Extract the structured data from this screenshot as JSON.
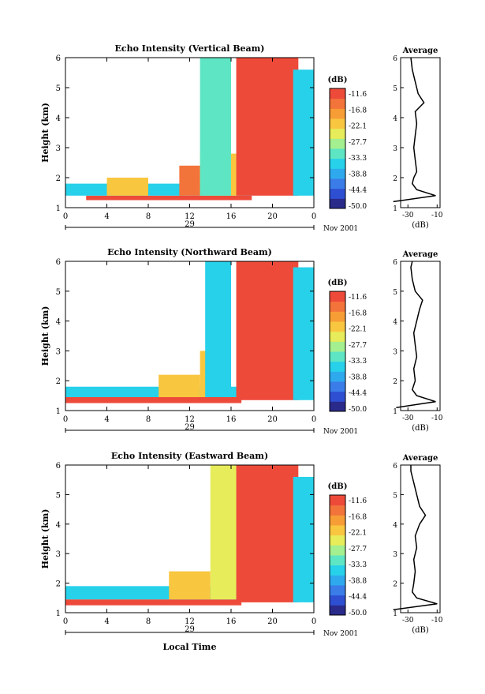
{
  "colors": {
    "palette": [
      "#2a2a8a",
      "#2f4fd2",
      "#3a7ce8",
      "#2fa9ee",
      "#27d1ea",
      "#5ee6c4",
      "#a4ef8f",
      "#e7ec5a",
      "#f9c640",
      "#f79d36",
      "#f3743a",
      "#ee4a3a"
    ]
  },
  "colorbar": {
    "unit": "(dB)",
    "ticks": [
      "-11.6",
      "-16.8",
      "-22.1",
      "-27.7",
      "-33.3",
      "-38.8",
      "-44.4",
      "-50.0"
    ]
  },
  "x_axis": {
    "ticks": [
      "0",
      "4",
      "8",
      "12",
      "16",
      "20",
      "0"
    ],
    "day": "29",
    "month_year": "Nov 2001",
    "xlabel": "Local Time"
  },
  "profile": {
    "title": "Average",
    "xticks": [
      "-30",
      "-10"
    ],
    "xlabel": "(dB)"
  },
  "chart_data": [
    {
      "type": "heatmap",
      "title": "Echo Intensity (Vertical Beam)",
      "ylabel": "Height (km)",
      "xlim": [
        0,
        24
      ],
      "ylim": [
        1,
        6
      ],
      "yticks": [
        "1",
        "2",
        "3",
        "4",
        "5",
        "6"
      ],
      "colorbar_range_db": [
        -50.0,
        -11.6
      ],
      "layers": [
        {
          "x": [
            2,
            18
          ],
          "y": [
            1.25,
            1.4
          ],
          "db": -12
        },
        {
          "x": [
            0,
            18
          ],
          "y": [
            1.4,
            1.8
          ],
          "db": -35
        },
        {
          "x": [
            4,
            8
          ],
          "y": [
            1.4,
            2.0
          ],
          "db": -22
        },
        {
          "x": [
            11,
            13
          ],
          "y": [
            1.4,
            2.4
          ],
          "db": -18
        },
        {
          "x": [
            13,
            17
          ],
          "y": [
            1.4,
            2.8
          ],
          "db": -24
        },
        {
          "x": [
            13,
            16
          ],
          "y": [
            1.4,
            6.0
          ],
          "db": -33
        },
        {
          "x": [
            16.5,
            22.5
          ],
          "y": [
            1.4,
            6.0
          ],
          "db": -13
        },
        {
          "x": [
            22,
            24
          ],
          "y": [
            1.4,
            5.6
          ],
          "db": -35
        }
      ],
      "profile": {
        "height_km": [
          1.2,
          1.4,
          1.6,
          1.8,
          2.0,
          2.2,
          2.6,
          3.0,
          3.4,
          3.8,
          4.2,
          4.5,
          4.8,
          5.2,
          5.6,
          6.0
        ],
        "db": [
          -40,
          -11,
          -24,
          -27,
          -26,
          -24,
          -25,
          -26,
          -25,
          -24,
          -25,
          -19,
          -23,
          -25,
          -27,
          -28
        ]
      }
    },
    {
      "type": "heatmap",
      "title": "Echo Intensity (Northward Beam)",
      "ylabel": "Height (km)",
      "xlim": [
        0,
        24
      ],
      "ylim": [
        1,
        6
      ],
      "yticks": [
        "1",
        "2",
        "3",
        "4",
        "5",
        "6"
      ],
      "colorbar_range_db": [
        -50.0,
        -11.6
      ],
      "layers": [
        {
          "x": [
            0,
            17
          ],
          "y": [
            1.25,
            1.45
          ],
          "db": -12
        },
        {
          "x": [
            0,
            17
          ],
          "y": [
            1.45,
            1.8
          ],
          "db": -36
        },
        {
          "x": [
            9,
            13
          ],
          "y": [
            1.45,
            2.2
          ],
          "db": -22
        },
        {
          "x": [
            13,
            16
          ],
          "y": [
            1.45,
            3.0
          ],
          "db": -24
        },
        {
          "x": [
            13.5,
            16
          ],
          "y": [
            1.45,
            6.0
          ],
          "db": -35
        },
        {
          "x": [
            16.5,
            22.5
          ],
          "y": [
            1.35,
            6.0
          ],
          "db": -13
        },
        {
          "x": [
            22,
            24
          ],
          "y": [
            1.35,
            5.8
          ],
          "db": -35
        }
      ],
      "profile": {
        "height_km": [
          1.1,
          1.3,
          1.5,
          1.7,
          2.0,
          2.4,
          2.8,
          3.2,
          3.6,
          4.0,
          4.4,
          4.7,
          5.0,
          5.4,
          5.8,
          6.0
        ],
        "db": [
          -38,
          -11,
          -24,
          -27,
          -25,
          -26,
          -24,
          -25,
          -26,
          -24,
          -22,
          -20,
          -25,
          -27,
          -28,
          -27
        ]
      }
    },
    {
      "type": "heatmap",
      "title": "Echo Intensity (Eastward Beam)",
      "ylabel": "Height (km)",
      "xlim": [
        0,
        24
      ],
      "ylim": [
        1,
        6
      ],
      "yticks": [
        "1",
        "2",
        "3",
        "4",
        "5",
        "6"
      ],
      "colorbar_range_db": [
        -50.0,
        -11.6
      ],
      "layers": [
        {
          "x": [
            0,
            17
          ],
          "y": [
            1.25,
            1.45
          ],
          "db": -12
        },
        {
          "x": [
            0,
            17
          ],
          "y": [
            1.45,
            1.9
          ],
          "db": -35
        },
        {
          "x": [
            10,
            14
          ],
          "y": [
            1.45,
            2.4
          ],
          "db": -22
        },
        {
          "x": [
            14,
            16.5
          ],
          "y": [
            1.45,
            6.0
          ],
          "db": -25
        },
        {
          "x": [
            16.5,
            22.5
          ],
          "y": [
            1.35,
            6.0
          ],
          "db": -13
        },
        {
          "x": [
            22,
            24
          ],
          "y": [
            1.35,
            5.6
          ],
          "db": -35
        }
      ],
      "profile": {
        "height_km": [
          1.1,
          1.3,
          1.5,
          1.7,
          2.0,
          2.4,
          2.8,
          3.2,
          3.6,
          4.0,
          4.3,
          4.6,
          5.0,
          5.4,
          5.8,
          6.0
        ],
        "db": [
          -40,
          -10,
          -24,
          -27,
          -26,
          -25,
          -26,
          -24,
          -25,
          -22,
          -18,
          -22,
          -24,
          -26,
          -28,
          -28
        ]
      }
    }
  ]
}
